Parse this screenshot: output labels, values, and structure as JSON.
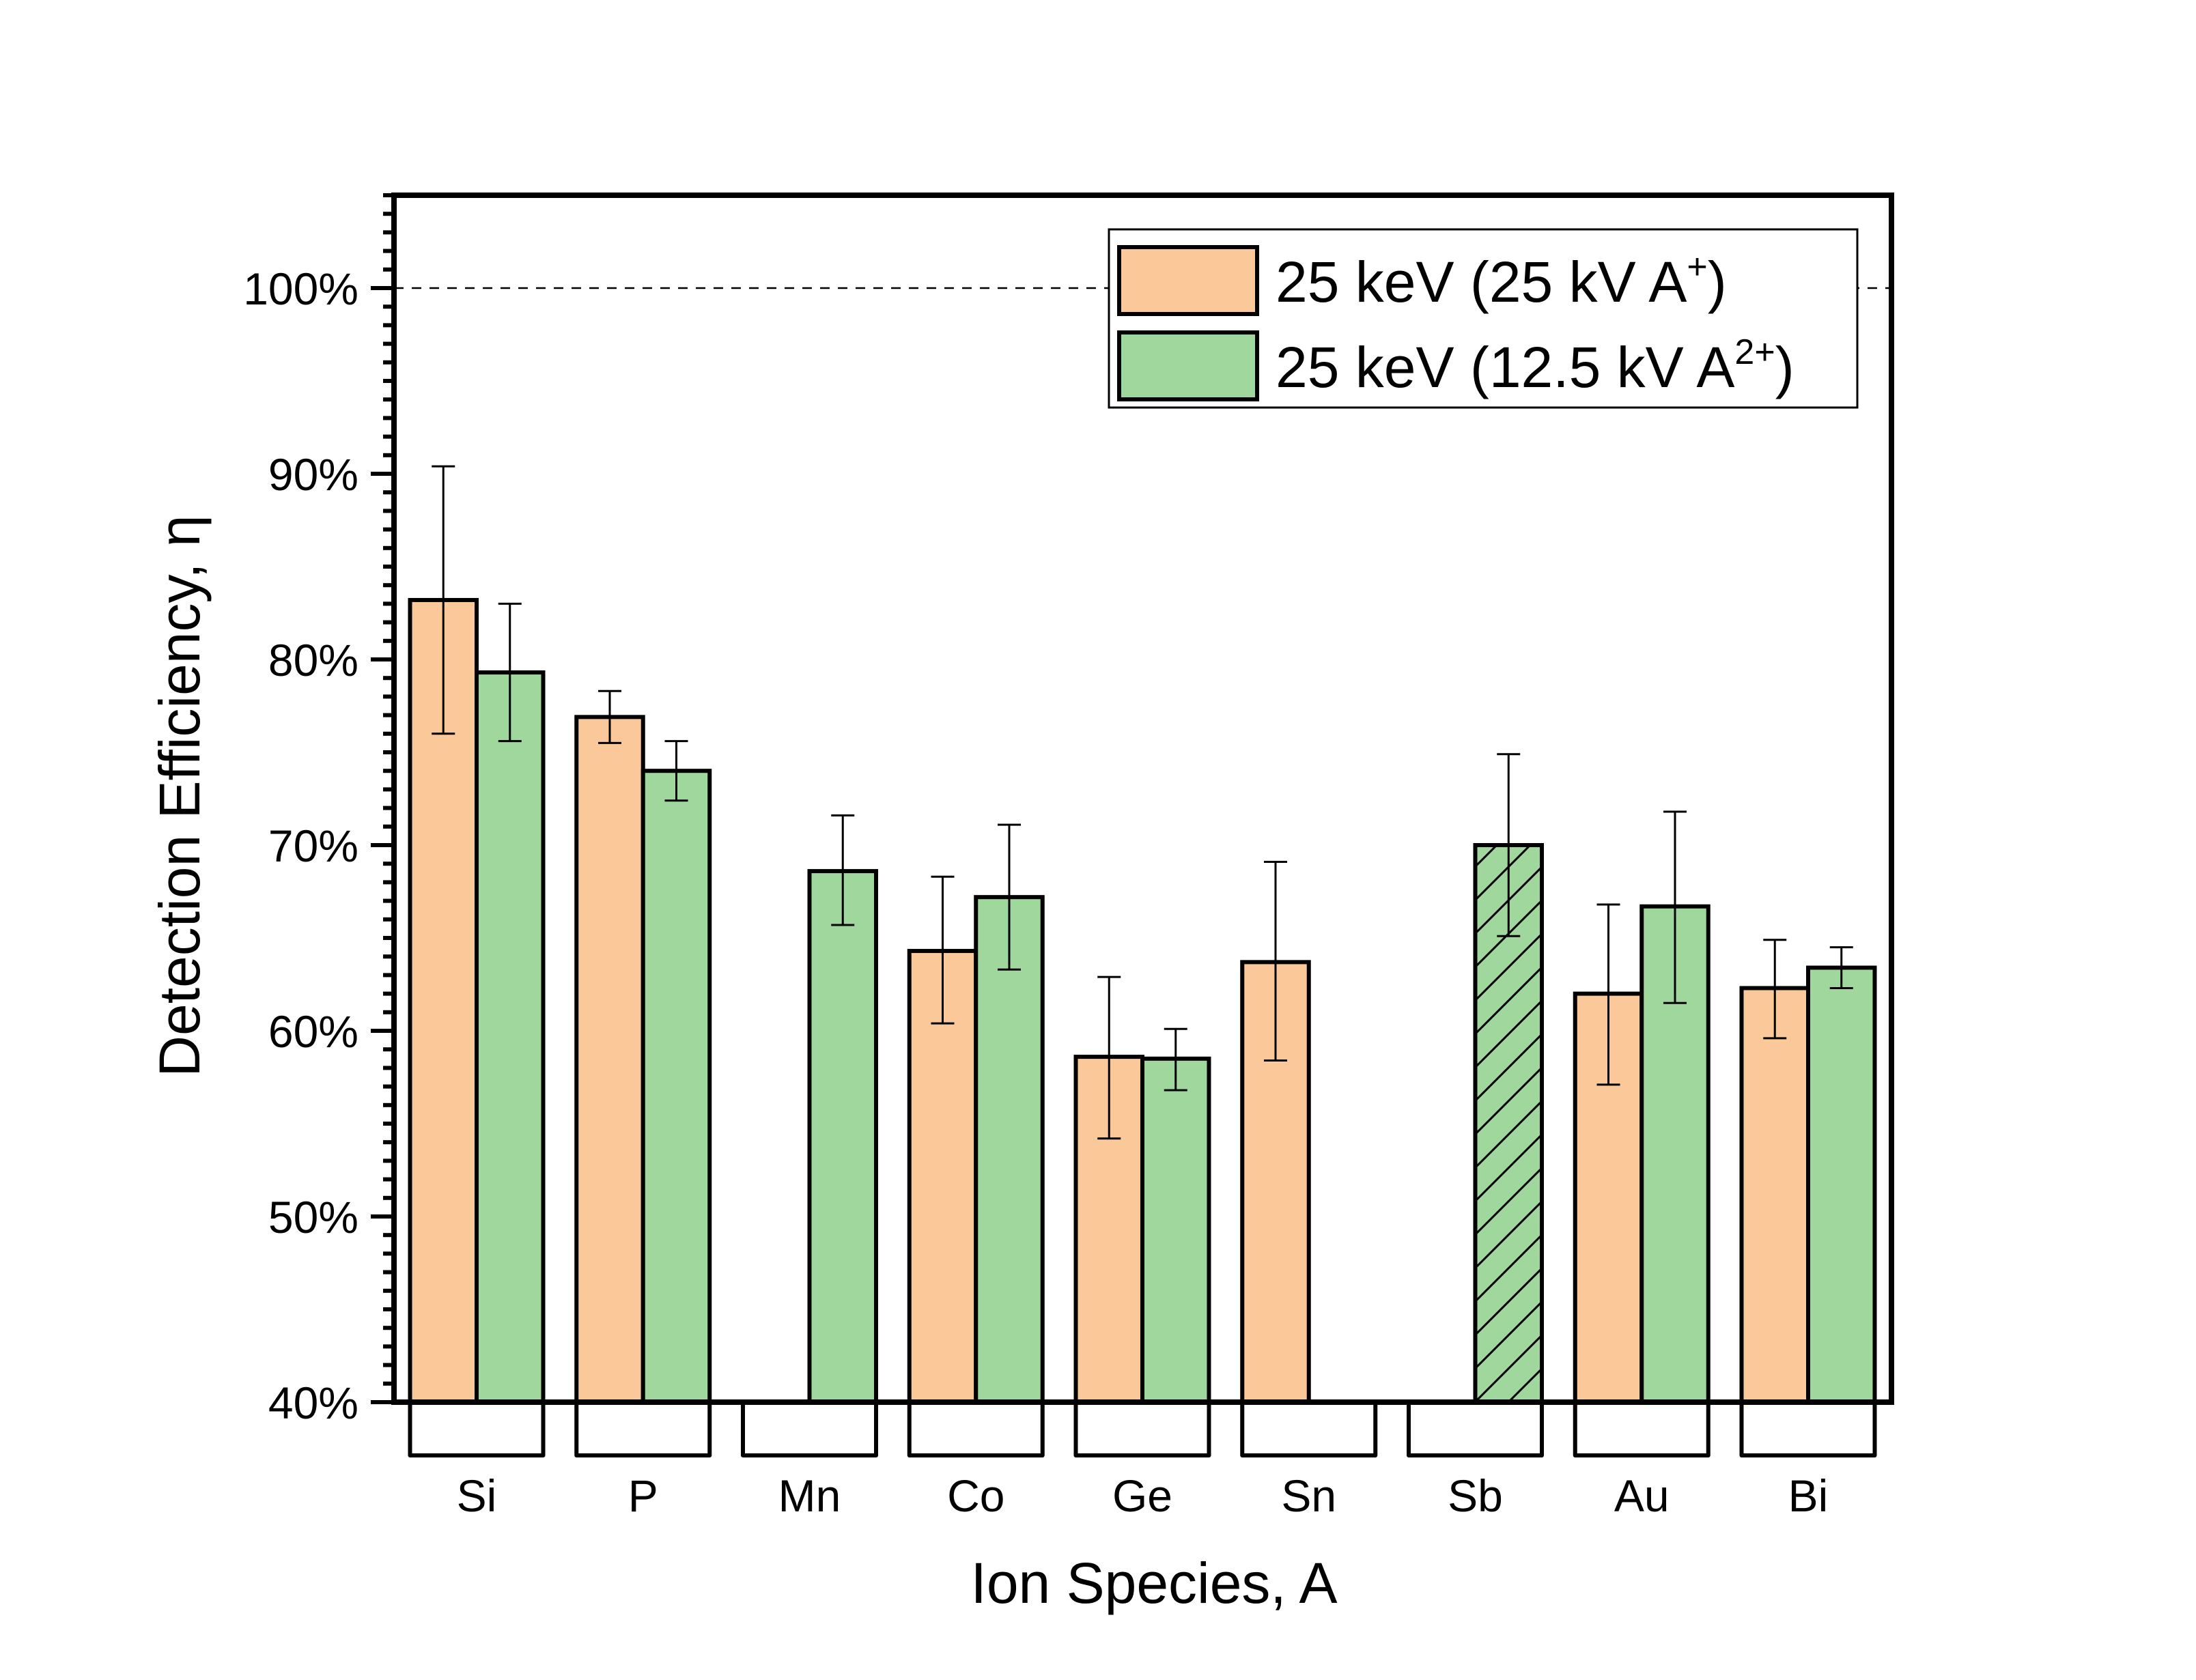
{
  "chart_data": {
    "type": "bar",
    "title": "",
    "xlabel": "Ion Species, A",
    "ylabel": "Detection Efficiency, η",
    "ylim": [
      40,
      105
    ],
    "y_major_ticks": [
      40,
      50,
      60,
      70,
      80,
      90,
      100
    ],
    "y_tick_labels": [
      "40%",
      "50%",
      "60%",
      "70%",
      "80%",
      "90%",
      "100%"
    ],
    "y_minor_step": 1,
    "grid": false,
    "reference_line": {
      "value": 100,
      "style": "dashed"
    },
    "legend_position": "top-right",
    "categories": [
      "Si",
      "P",
      "Mn",
      "Co",
      "Ge",
      "Sn",
      "Sb",
      "Au",
      "Bi"
    ],
    "series": [
      {
        "name": "25 keV (25 kV A⁺)",
        "label_main": "25 keV (25 kV A",
        "label_sup": "+",
        "label_end": ")",
        "color": "#fbc999",
        "values": [
          83.2,
          76.9,
          null,
          64.3,
          58.6,
          63.7,
          null,
          62.0,
          62.3
        ],
        "err_low": [
          76.0,
          75.5,
          null,
          60.4,
          54.2,
          58.4,
          null,
          57.1,
          59.6
        ],
        "err_high": [
          90.4,
          78.3,
          null,
          68.3,
          62.9,
          69.1,
          null,
          66.8,
          64.9
        ],
        "hatched": [
          false,
          false,
          false,
          false,
          false,
          false,
          false,
          false,
          false
        ]
      },
      {
        "name": "25 keV (12.5 kV A²⁺)",
        "label_main": "25 keV (12.5 kV A",
        "label_sup": "2+",
        "label_end": ")",
        "color": "#9fd79d",
        "values": [
          79.3,
          74.0,
          68.6,
          67.2,
          58.5,
          null,
          70.0,
          66.7,
          63.4
        ],
        "err_low": [
          75.6,
          72.4,
          65.7,
          63.3,
          56.8,
          null,
          65.1,
          61.5,
          62.3
        ],
        "err_high": [
          83.0,
          75.6,
          71.6,
          71.1,
          60.1,
          null,
          74.9,
          71.8,
          64.5
        ],
        "hatched": [
          false,
          false,
          false,
          false,
          false,
          false,
          true,
          false,
          false
        ]
      }
    ]
  }
}
